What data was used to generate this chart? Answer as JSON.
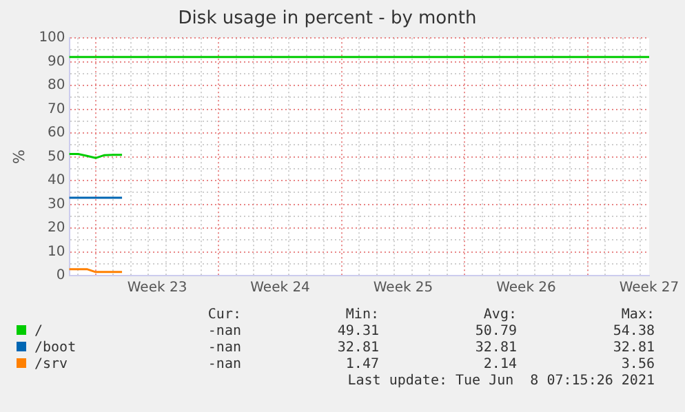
{
  "chart_data": {
    "type": "line",
    "title": "Disk usage in percent - by month",
    "ylabel": "%",
    "categories": [
      null,
      null,
      null,
      null,
      null,
      null,
      null,
      null,
      null,
      null,
      "Week 23",
      null,
      null,
      null,
      null,
      null,
      null,
      null,
      null,
      null,
      null,
      null,
      null,
      null,
      "Week 24",
      null,
      null,
      null,
      null,
      null,
      null,
      null,
      null,
      null,
      null,
      null,
      null,
      null,
      "Week 25",
      null,
      null,
      null,
      null,
      null,
      null,
      null,
      null,
      null,
      null,
      null,
      null,
      null,
      "Week 26",
      null,
      null,
      null,
      null,
      null,
      null,
      null,
      null,
      null,
      null,
      null,
      null,
      null,
      "Week 27"
    ],
    "series": [
      {
        "name": "/",
        "color": "#00cc00",
        "values": [
          51.2,
          51.2,
          50.4,
          49.5,
          50.7,
          50.8,
          50.8,
          null,
          null,
          null,
          null,
          null,
          null,
          null,
          null,
          null,
          null,
          null,
          null,
          null,
          null,
          null,
          null,
          null,
          null,
          null,
          null,
          null,
          null,
          null,
          null,
          null,
          null,
          null,
          null,
          null,
          null,
          null,
          null,
          null,
          null,
          null,
          null,
          null,
          null,
          null,
          null,
          null,
          null,
          null,
          null,
          null,
          null,
          null,
          null,
          null,
          null,
          null,
          null,
          null,
          null,
          null,
          null,
          null,
          null,
          null,
          null
        ]
      },
      {
        "name": "/boot",
        "color": "#0066b3",
        "values": [
          32.8,
          32.8,
          32.8,
          32.8,
          32.8,
          32.8,
          32.8,
          null,
          null,
          null,
          null,
          null,
          null,
          null,
          null,
          null,
          null,
          null,
          null,
          null,
          null,
          null,
          null,
          null,
          null,
          null,
          null,
          null,
          null,
          null,
          null,
          null,
          null,
          null,
          null,
          null,
          null,
          null,
          null,
          null,
          null,
          null,
          null,
          null,
          null,
          null,
          null,
          null,
          null,
          null,
          null,
          null,
          null,
          null,
          null,
          null,
          null,
          null,
          null,
          null,
          null,
          null,
          null,
          null,
          null,
          null,
          null
        ]
      },
      {
        "name": "/srv",
        "color": "#ff8000",
        "values": [
          2.7,
          2.7,
          2.7,
          1.5,
          1.5,
          1.5,
          1.5,
          null,
          null,
          null,
          null,
          null,
          null,
          null,
          null,
          null,
          null,
          null,
          null,
          null,
          null,
          null,
          null,
          null,
          null,
          null,
          null,
          null,
          null,
          null,
          null,
          null,
          null,
          null,
          null,
          null,
          null,
          null,
          null,
          null,
          null,
          null,
          null,
          null,
          null,
          null,
          null,
          null,
          null,
          null,
          null,
          null,
          null,
          null,
          null,
          null,
          null,
          null,
          null,
          null,
          null,
          null,
          null,
          null,
          null,
          null,
          null
        ]
      }
    ],
    "ylim": [
      0,
      100
    ],
    "yticks": [
      0,
      {
        "value": 5,
        "label": null
      },
      10,
      {
        "value": 15,
        "label": null
      },
      20,
      {
        "value": 25,
        "label": null
      },
      30,
      {
        "value": 35,
        "label": null
      },
      40,
      {
        "value": 45,
        "label": null
      },
      50,
      {
        "value": 55,
        "label": null
      },
      60,
      {
        "value": 65,
        "label": null
      },
      70,
      {
        "value": 75,
        "label": null
      },
      80,
      {
        "value": 85,
        "label": null
      },
      90,
      {
        "value": 95,
        "label": null
      },
      100
    ],
    "ref_lines": [
      {
        "axis": "y",
        "value": 92,
        "label": null,
        "color": "#00cc00"
      }
    ],
    "grid": true,
    "legend": "bottom",
    "line_style": "solid",
    "marker": "none",
    "annotations": [
      "Cur:",
      "Min:",
      "Avg:",
      "Max:",
      "-nan",
      "49.31",
      "50.79",
      "54.38",
      "-nan",
      "32.81",
      "32.81",
      "32.81",
      "-nan",
      "1.47",
      "2.14",
      "3.56",
      "Last update: Tue Jun  8 07:15:26 2021"
    ]
  }
}
